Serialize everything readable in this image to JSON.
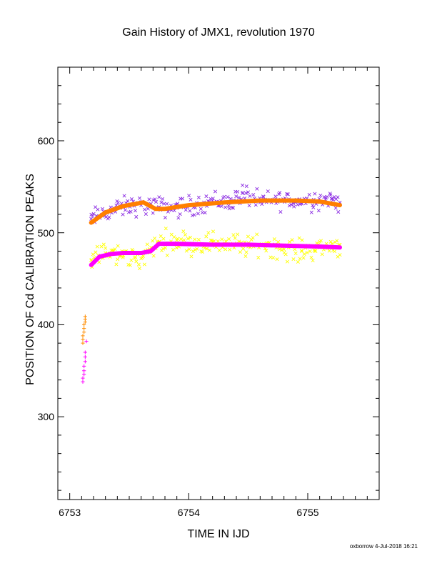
{
  "chart_data": {
    "type": "scatter",
    "title": "Gain History of JMX1, revolution 1970",
    "xlabel": "TIME IN IJD",
    "ylabel": "POSITION OF Cd CALIBRATION PEAKS",
    "xlim": [
      6752.9,
      6755.6
    ],
    "ylim": [
      210,
      680
    ],
    "xticks": [
      "6753",
      "6754",
      "6755"
    ],
    "yticks": [
      "300",
      "400",
      "500",
      "600"
    ],
    "grid": false,
    "legend": "none",
    "series": [
      {
        "marker": "x",
        "color": "#8a2be2",
        "x": [
          6753.18,
          6753.3,
          6753.45,
          6753.6,
          6753.75,
          6753.9,
          6754.05,
          6754.2,
          6754.35,
          6754.45,
          6754.6,
          6754.75,
          6754.9,
          6755.05,
          6755.2,
          6755.27
        ],
        "y": [
          515,
          522,
          528,
          530,
          528,
          527,
          530,
          535,
          533,
          543,
          533,
          536,
          534,
          536,
          537,
          533
        ],
        "spread": 9
      },
      {
        "marker": "x",
        "color": "#ffff00",
        "x": [
          6753.18,
          6753.3,
          6753.45,
          6753.6,
          6753.75,
          6753.9,
          6754.05,
          6754.2,
          6754.35,
          6754.5,
          6754.65,
          6754.8,
          6754.95,
          6755.1,
          6755.27
        ],
        "y": [
          470,
          478,
          475,
          472,
          490,
          492,
          488,
          490,
          488,
          485,
          488,
          482,
          480,
          484,
          487
        ],
        "spread": 10
      },
      {
        "marker": "line",
        "color": "#ff7f00",
        "x": [
          6753.18,
          6753.3,
          6753.45,
          6753.62,
          6753.72,
          6753.8,
          6754.0,
          6754.3,
          6754.6,
          6754.9,
          6755.1,
          6755.27
        ],
        "y": [
          511,
          522,
          529,
          533,
          526,
          526,
          530,
          533,
          535,
          535,
          534,
          530
        ]
      },
      {
        "marker": "line",
        "color": "#ff00ff",
        "x": [
          6753.18,
          6753.25,
          6753.35,
          6753.45,
          6753.6,
          6753.68,
          6753.75,
          6753.9,
          6754.2,
          6754.5,
          6754.8,
          6755.1,
          6755.27
        ],
        "y": [
          465,
          474,
          477,
          478,
          478,
          480,
          488,
          488,
          487,
          487,
          486,
          485,
          484
        ]
      },
      {
        "marker": "+",
        "color": "#ff8c00",
        "x": [
          6753.11,
          6753.11,
          6753.11,
          6753.12,
          6753.12,
          6753.12,
          6753.13,
          6753.13,
          6753.13
        ],
        "y": [
          380,
          384,
          388,
          392,
          396,
          400,
          403,
          406,
          409
        ]
      },
      {
        "marker": "+",
        "color": "#ff00ff",
        "x": [
          6753.11,
          6753.11,
          6753.12,
          6753.12,
          6753.12,
          6753.13,
          6753.13,
          6753.13,
          6753.14
        ],
        "y": [
          338,
          342,
          346,
          350,
          355,
          360,
          365,
          370,
          382
        ]
      }
    ]
  },
  "footer": "oxborrow  4-Jul-2018 16:21"
}
